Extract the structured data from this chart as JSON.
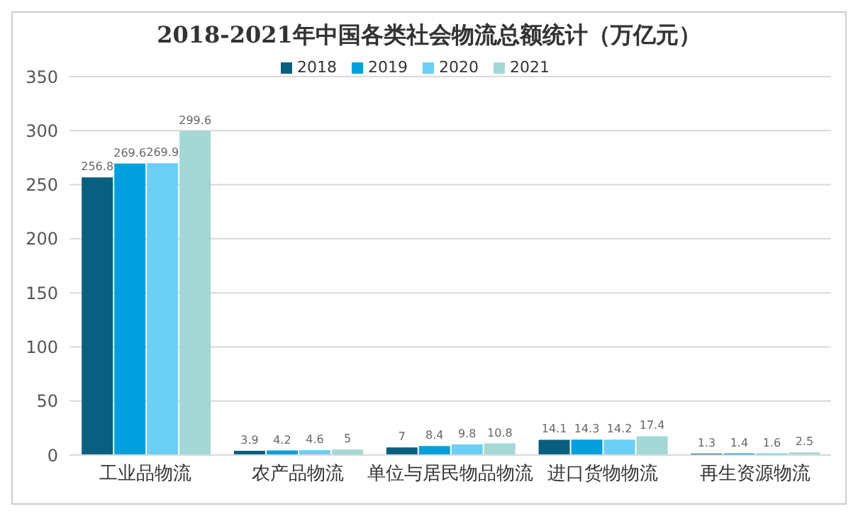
{
  "chart_data": {
    "type": "bar",
    "title": "2018-2021年中国各类社会物流总额统计（万亿元）",
    "categories": [
      "工业品物流",
      "农产品物流",
      "单位与居民物品物流",
      "进口货物物流",
      "再生资源物流"
    ],
    "series": [
      {
        "name": "2018",
        "color": "#0a5f80",
        "values": [
          256.8,
          3.9,
          7,
          14.1,
          1.3
        ]
      },
      {
        "name": "2019",
        "color": "#00a0dc",
        "values": [
          269.6,
          4.2,
          8.4,
          14.3,
          1.4
        ]
      },
      {
        "name": "2020",
        "color": "#6ccff6",
        "values": [
          269.9,
          4.6,
          9.8,
          14.2,
          1.6
        ]
      },
      {
        "name": "2021",
        "color": "#a3d8d4",
        "values": [
          299.6,
          5,
          10.8,
          17.4,
          2.5
        ]
      }
    ],
    "ylim": [
      0,
      350
    ],
    "yticks": [
      0,
      50,
      100,
      150,
      200,
      250,
      300,
      350
    ],
    "grid": "y",
    "legend": "top",
    "data_labels": true
  }
}
